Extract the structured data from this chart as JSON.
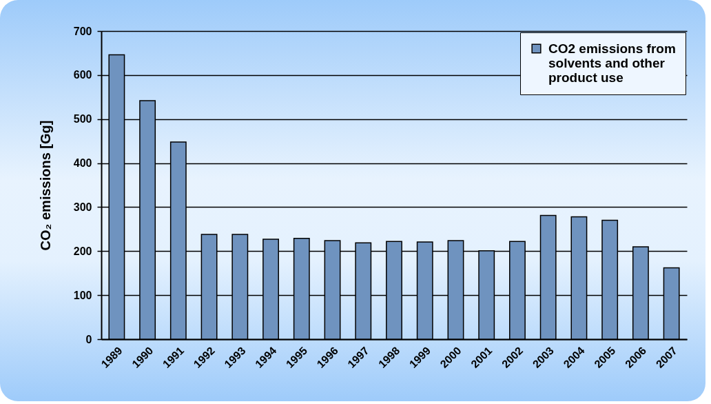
{
  "chart_data": {
    "type": "bar",
    "ylabel": "CO₂ emissions [Gg]",
    "categories": [
      "1989",
      "1990",
      "1991",
      "1992",
      "1993",
      "1994",
      "1995",
      "1996",
      "1997",
      "1998",
      "1999",
      "2000",
      "2001",
      "2002",
      "2003",
      "2004",
      "2005",
      "2006",
      "2007"
    ],
    "series": [
      {
        "name": "CO2 emissions from solvents and other product use",
        "color": "#6f93bf",
        "values": [
          646,
          542,
          448,
          238,
          238,
          227,
          229,
          224,
          219,
          222,
          221,
          224,
          201,
          222,
          281,
          278,
          270,
          210,
          162
        ]
      }
    ],
    "ylim": [
      0,
      700
    ],
    "yticks": [
      0,
      100,
      200,
      300,
      400,
      500,
      600,
      700
    ],
    "grid": "y",
    "legend": "top right"
  }
}
